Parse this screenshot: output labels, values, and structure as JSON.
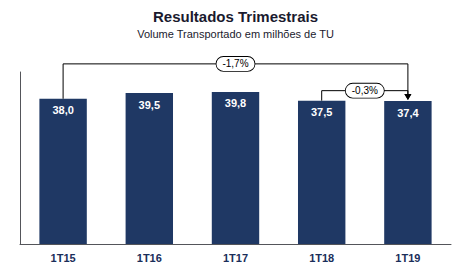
{
  "chart_data": {
    "type": "bar",
    "title": "Resultados Trimestrais",
    "subtitle": "Volume Transportado em milhões de TU",
    "categories": [
      "1T15",
      "1T16",
      "1T17",
      "1T18",
      "1T19"
    ],
    "values": [
      38.0,
      39.5,
      39.8,
      37.5,
      37.4
    ],
    "value_labels": [
      "38,0",
      "39,5",
      "39,8",
      "37,5",
      "37,4"
    ],
    "data_labels": true,
    "color": "#1f3864",
    "ylim": [
      0,
      45
    ],
    "grid": false,
    "tick_labels": "x",
    "annotations": [
      {
        "text": "-1,7%",
        "from": "1T15",
        "to": "1T19"
      },
      {
        "text": "-0,3%",
        "from": "1T18",
        "to": "1T19"
      }
    ]
  }
}
